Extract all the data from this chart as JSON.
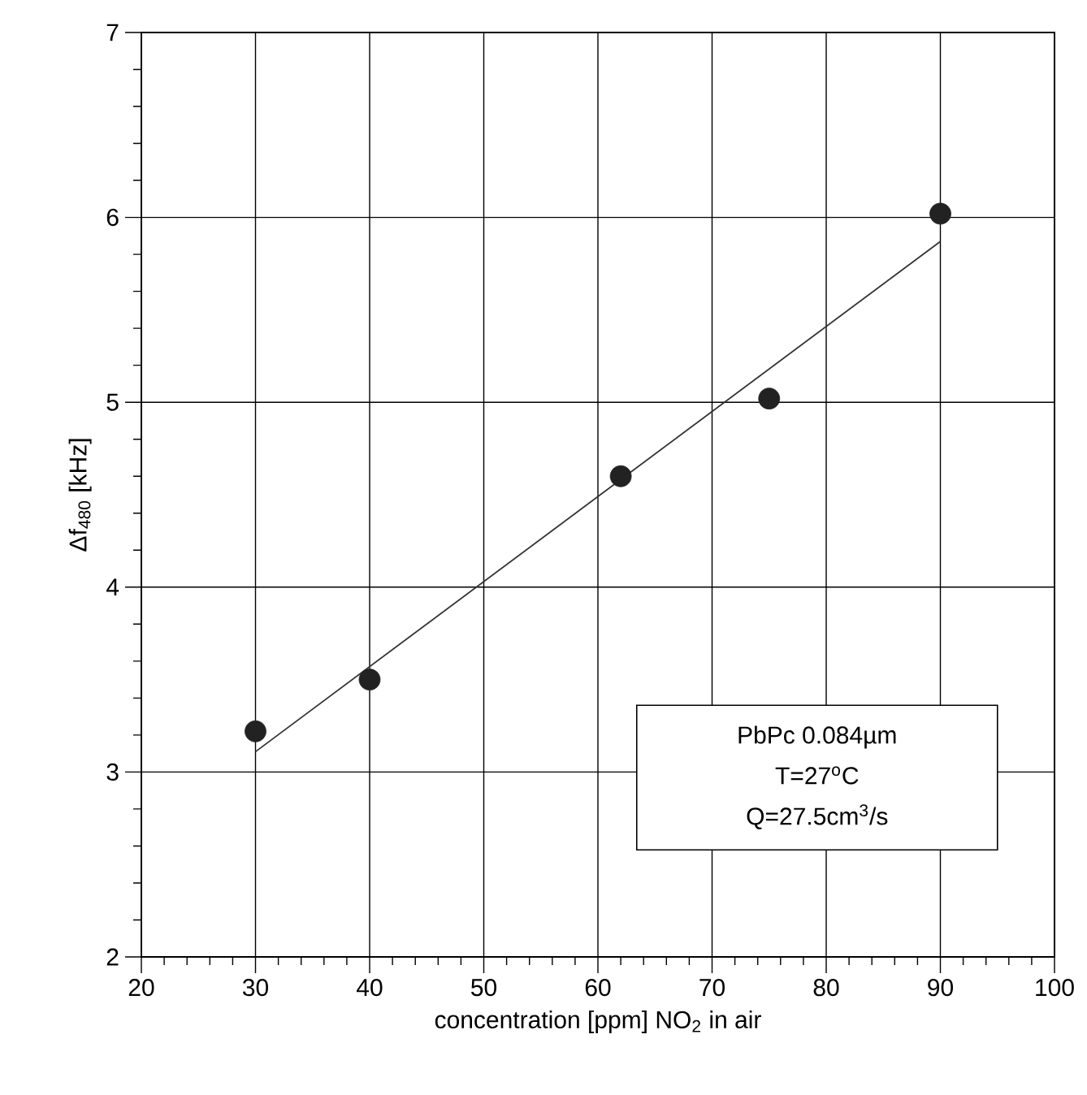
{
  "chart_data": {
    "type": "scatter",
    "xlabel": "concentration [ppm] NO$_{2}$ in air",
    "ylabel": "Δf$_{480}$ [kHz]",
    "xlim": [
      20,
      100
    ],
    "ylim": [
      2,
      7
    ],
    "xticks": [
      20,
      30,
      40,
      50,
      60,
      70,
      80,
      90,
      100
    ],
    "yticks": [
      2,
      3,
      4,
      5,
      6,
      7
    ],
    "grid": true,
    "series": [
      {
        "marker": "circle",
        "color": "#222222",
        "x": [
          30,
          40,
          62,
          75,
          90
        ],
        "values": [
          3.22,
          3.5,
          4.6,
          5.02,
          6.02
        ]
      },
      {
        "type": "line",
        "marker": "none",
        "color": "#333333",
        "x": [
          30,
          90
        ],
        "values": [
          3.11,
          5.87
        ]
      }
    ],
    "annotations": [
      "PbPc 0.084µm",
      "T=27$^{o}$C",
      "Q=27.5cm$^{3}$/s"
    ]
  }
}
